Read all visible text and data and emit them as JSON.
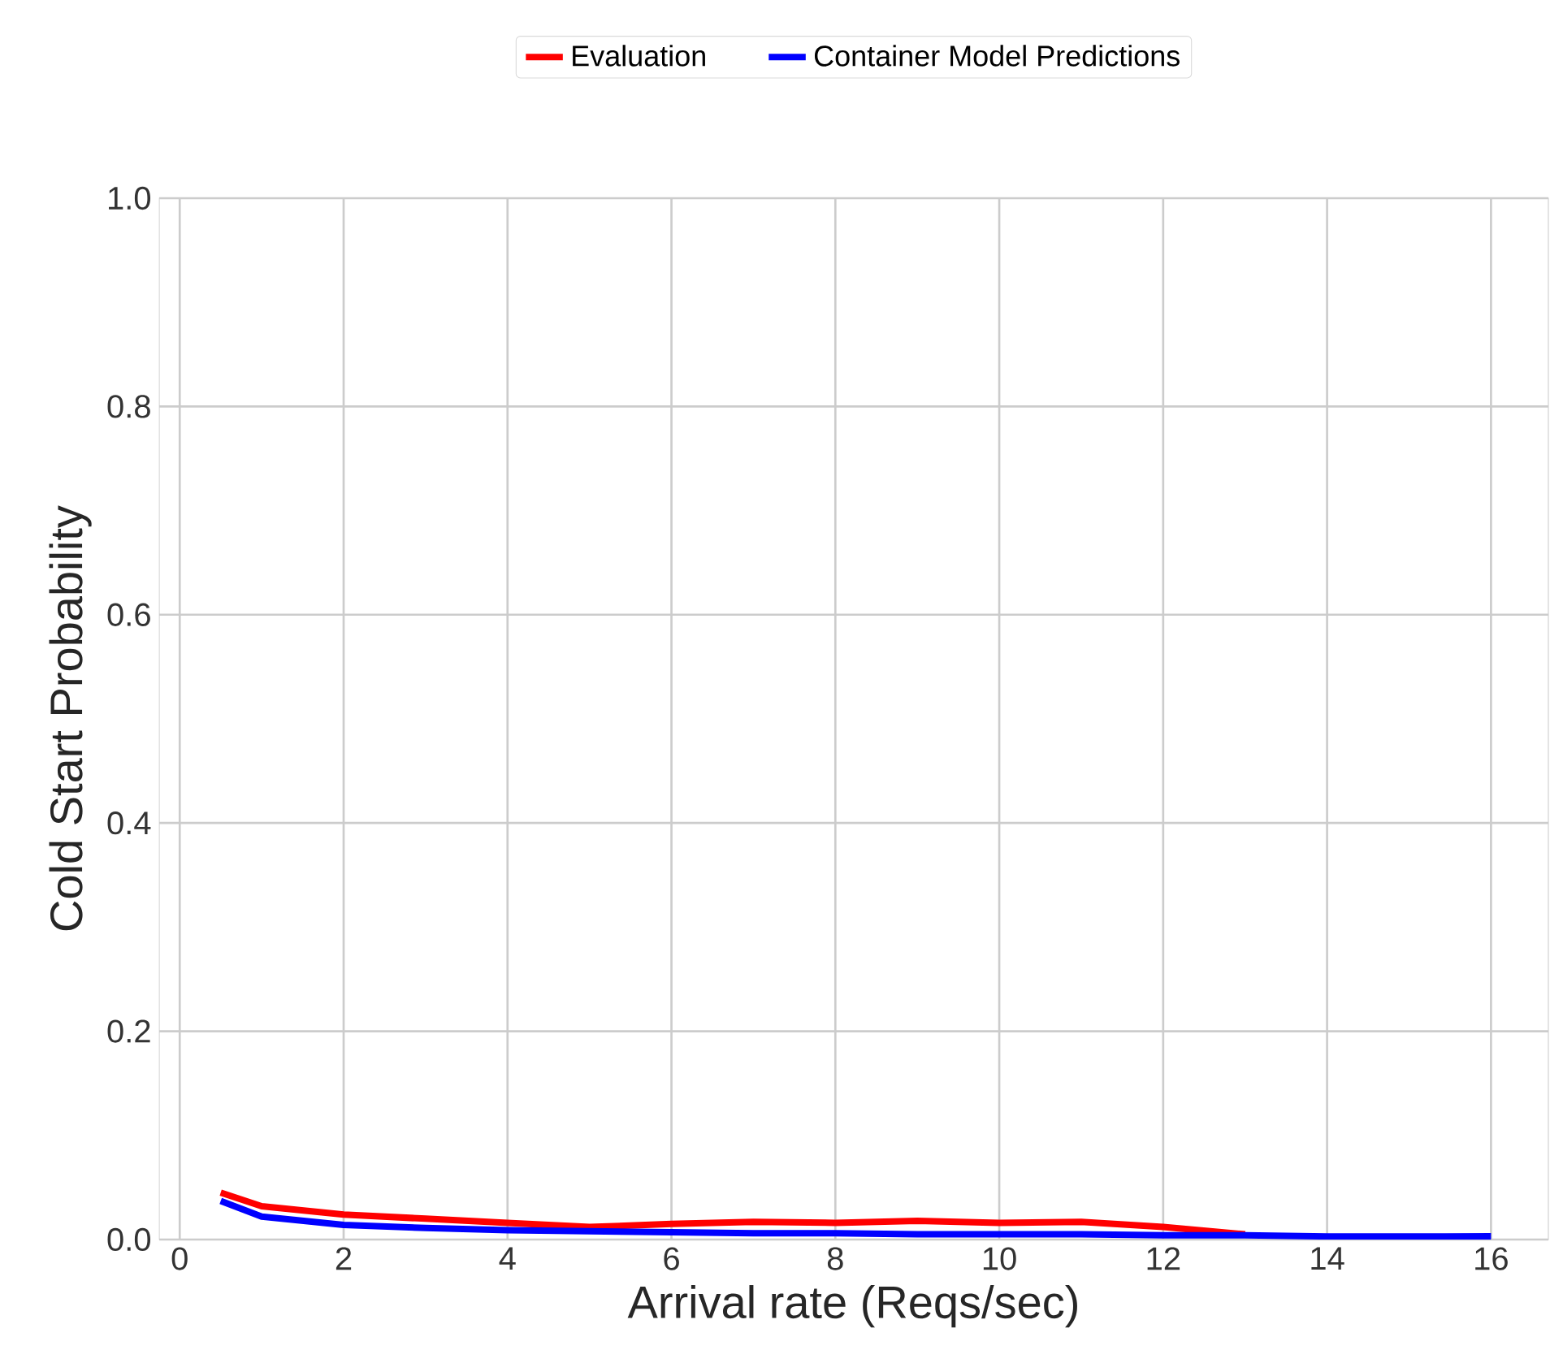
{
  "chart_data": {
    "type": "line",
    "xlabel": "Arrival rate (Reqs/sec)",
    "ylabel": "Cold Start Probability",
    "x": [
      0.5,
      1,
      2,
      3,
      4,
      5,
      6,
      7,
      8,
      9,
      10,
      11,
      12,
      13,
      14,
      15,
      16
    ],
    "series": [
      {
        "name": "Evaluation",
        "color": "#ff0000",
        "values": [
          0.045,
          0.032,
          0.024,
          0.02,
          0.016,
          0.012,
          0.015,
          0.017,
          0.016,
          0.018,
          0.016,
          0.017,
          0.012,
          0.005,
          null,
          null,
          null
        ]
      },
      {
        "name": "Container Model Predictions",
        "color": "#0000ff",
        "values": [
          0.037,
          0.022,
          0.014,
          0.011,
          0.009,
          0.008,
          0.007,
          0.006,
          0.006,
          0.005,
          0.005,
          0.005,
          0.004,
          0.004,
          0.003,
          0.003,
          0.003
        ]
      }
    ],
    "xlim": [
      -0.25,
      16.7
    ],
    "ylim": [
      0,
      1.0
    ],
    "xticks": [
      0,
      2,
      4,
      6,
      8,
      10,
      12,
      14,
      16
    ],
    "yticks": [
      {
        "value": 0,
        "label": "0.0"
      },
      {
        "value": 0.2,
        "label": "0.2"
      },
      {
        "value": 0.4,
        "label": "0.4"
      },
      {
        "value": 0.6,
        "label": "0.6"
      },
      {
        "value": 0.8,
        "label": "0.8"
      },
      {
        "value": 1.0,
        "label": "1.0"
      }
    ],
    "grid": true,
    "legend": "top",
    "line_style": "solid",
    "marker": "none"
  }
}
